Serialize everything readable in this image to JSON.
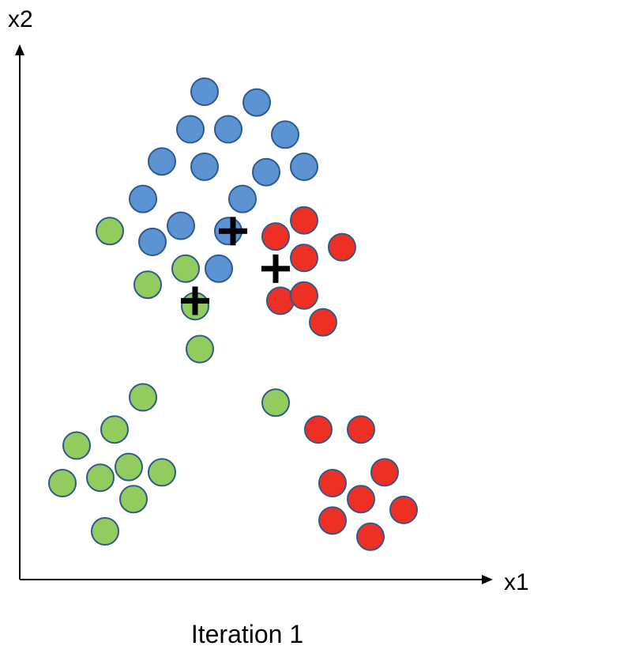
{
  "chart_data": {
    "type": "scatter",
    "title": "",
    "caption": "Iteration 1",
    "xlabel": "x1",
    "ylabel": "x2",
    "xlim": [
      0,
      100
    ],
    "ylim": [
      0,
      100
    ],
    "grid": false,
    "legend": "none",
    "series": [
      {
        "color": "#5b93d3",
        "points": [
          [
            39,
            91
          ],
          [
            50,
            89
          ],
          [
            36,
            84
          ],
          [
            44,
            84
          ],
          [
            56,
            83
          ],
          [
            30,
            78
          ],
          [
            39,
            77
          ],
          [
            52,
            76
          ],
          [
            60,
            77
          ],
          [
            26,
            71
          ],
          [
            47,
            71
          ],
          [
            34,
            66
          ],
          [
            28,
            63
          ],
          [
            44,
            65
          ],
          [
            42,
            58
          ]
        ]
      },
      {
        "color": "#ee2f24",
        "points": [
          [
            60,
            67
          ],
          [
            54,
            64
          ],
          [
            68,
            62
          ],
          [
            60,
            60
          ],
          [
            55,
            52
          ],
          [
            60,
            53
          ],
          [
            64,
            48
          ],
          [
            63,
            28
          ],
          [
            72,
            28
          ],
          [
            66,
            18
          ],
          [
            77,
            20
          ],
          [
            72,
            15
          ],
          [
            81,
            13
          ],
          [
            66,
            11
          ],
          [
            74,
            8
          ]
        ]
      },
      {
        "color": "#92cc5e",
        "points": [
          [
            19,
            65
          ],
          [
            35,
            58
          ],
          [
            27,
            55
          ],
          [
            37,
            51
          ],
          [
            38,
            43
          ],
          [
            26,
            34
          ],
          [
            54,
            33
          ],
          [
            20,
            28
          ],
          [
            12,
            25
          ],
          [
            23,
            21
          ],
          [
            30,
            20
          ],
          [
            9,
            18
          ],
          [
            17,
            19
          ],
          [
            24,
            15
          ],
          [
            18,
            9
          ]
        ]
      }
    ],
    "centroids": [
      {
        "x": 45,
        "y": 65
      },
      {
        "x": 54,
        "y": 58
      },
      {
        "x": 37,
        "y": 52
      }
    ]
  }
}
